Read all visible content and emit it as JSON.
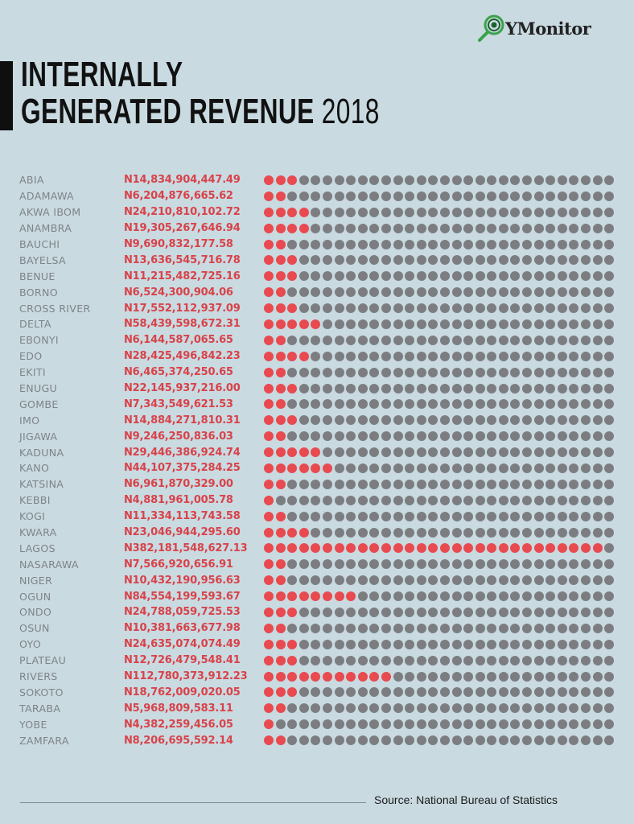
{
  "brand": {
    "logo_text": "YMonitor",
    "logo_icon": "magnifier-eye-icon"
  },
  "title": {
    "line1": "INTERNALLY",
    "line2": "GENERATED REVENUE",
    "year": "2018"
  },
  "colors": {
    "background": "#c9dae1",
    "accent_red": "#e84a4f",
    "value_red": "#d94249",
    "dot_grey": "#7c7d80",
    "label_grey": "#7e8488"
  },
  "footer": {
    "source": "Source: National Bureau of Statistics"
  },
  "chart_data": {
    "type": "table",
    "title": "INTERNALLY GENERATED REVENUE 2018",
    "dots_per_row": 30,
    "currency_prefix": "N",
    "rows": [
      {
        "state": "ABIA",
        "value": "N14,834,904,447.49",
        "red_dots": 3
      },
      {
        "state": "ADAMAWA",
        "value": "N6,204,876,665.62",
        "red_dots": 2
      },
      {
        "state": "AKWA IBOM",
        "value": "N24,210,810,102.72",
        "red_dots": 4
      },
      {
        "state": "ANAMBRA",
        "value": "N19,305,267,646.94",
        "red_dots": 4
      },
      {
        "state": "BAUCHI",
        "value": "N9,690,832,177.58",
        "red_dots": 2
      },
      {
        "state": "BAYELSA",
        "value": "N13,636,545,716.78",
        "red_dots": 3
      },
      {
        "state": "BENUE",
        "value": "N11,215,482,725.16",
        "red_dots": 3
      },
      {
        "state": "BORNO",
        "value": "N6,524,300,904.06",
        "red_dots": 2
      },
      {
        "state": "CROSS RIVER",
        "value": "N17,552,112,937.09",
        "red_dots": 3
      },
      {
        "state": "DELTA",
        "value": "N58,439,598,672.31",
        "red_dots": 5
      },
      {
        "state": "EBONYI",
        "value": "N6,144,587,065.65",
        "red_dots": 2
      },
      {
        "state": "EDO",
        "value": "N28,425,496,842.23",
        "red_dots": 4
      },
      {
        "state": "EKITI",
        "value": "N6,465,374,250.65",
        "red_dots": 2
      },
      {
        "state": "ENUGU",
        "value": "N22,145,937,216.00",
        "red_dots": 3
      },
      {
        "state": "GOMBE",
        "value": "N7,343,549,621.53",
        "red_dots": 2
      },
      {
        "state": "IMO",
        "value": "N14,884,271,810.31",
        "red_dots": 3
      },
      {
        "state": "JIGAWA",
        "value": "N9,246,250,836.03",
        "red_dots": 2
      },
      {
        "state": "KADUNA",
        "value": "N29,446,386,924.74",
        "red_dots": 5
      },
      {
        "state": "KANO",
        "value": "N44,107,375,284.25",
        "red_dots": 6
      },
      {
        "state": "KATSINA",
        "value": "N6,961,870,329.00",
        "red_dots": 2
      },
      {
        "state": "KEBBI",
        "value": "N4,881,961,005.78",
        "red_dots": 1
      },
      {
        "state": "KOGI",
        "value": "N11,334,113,743.58",
        "red_dots": 2
      },
      {
        "state": "KWARA",
        "value": "N23,046,944,295.60",
        "red_dots": 4
      },
      {
        "state": "LAGOS",
        "value": "N382,181,548,627.13",
        "red_dots": 29
      },
      {
        "state": "NASARAWA",
        "value": "N7,566,920,656.91",
        "red_dots": 2
      },
      {
        "state": "NIGER",
        "value": "N10,432,190,956.63",
        "red_dots": 2
      },
      {
        "state": "OGUN",
        "value": "N84,554,199,593.67",
        "red_dots": 8
      },
      {
        "state": "ONDO",
        "value": "N24,788,059,725.53",
        "red_dots": 3
      },
      {
        "state": "OSUN",
        "value": "N10,381,663,677.98",
        "red_dots": 2
      },
      {
        "state": "OYO",
        "value": "N24,635,074,074.49",
        "red_dots": 3
      },
      {
        "state": "PLATEAU",
        "value": "N12,726,479,548.41",
        "red_dots": 3
      },
      {
        "state": "RIVERS",
        "value": "N112,780,373,912.23",
        "red_dots": 11
      },
      {
        "state": "SOKOTO",
        "value": "N18,762,009,020.05",
        "red_dots": 3
      },
      {
        "state": "TARABA",
        "value": "N5,968,809,583.11",
        "red_dots": 2
      },
      {
        "state": "YOBE",
        "value": "N4,382,259,456.05",
        "red_dots": 1
      },
      {
        "state": "ZAMFARA",
        "value": "N8,206,695,592.14",
        "red_dots": 2
      }
    ]
  }
}
